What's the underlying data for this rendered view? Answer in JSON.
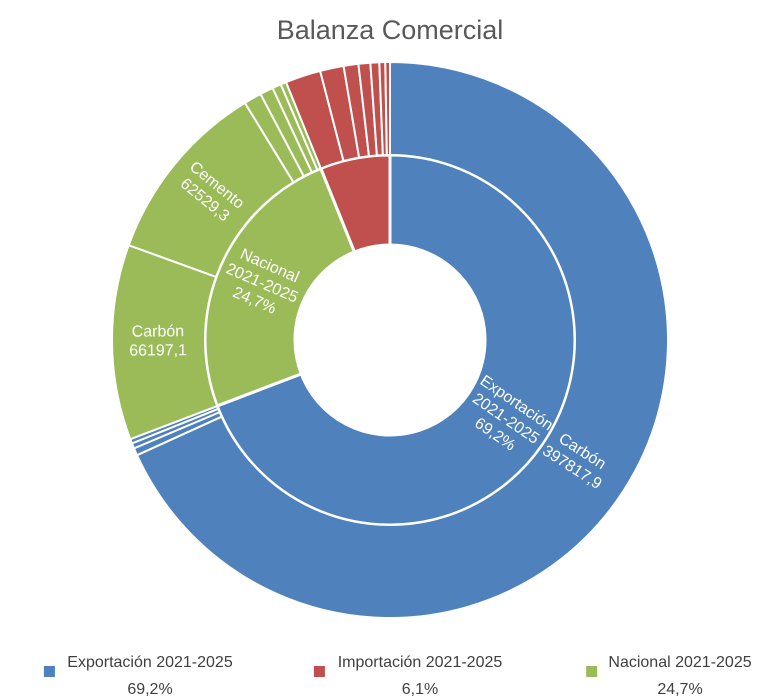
{
  "chart_data": {
    "type": "sunburst",
    "title": "Balanza Comercial",
    "groups": [
      {
        "name": "Exportación 2021-2025",
        "value": 69.2,
        "value_label": "69,2%",
        "color": "#4f81bd",
        "children": {
          "names": [
            "Carbón",
            null,
            null,
            null
          ],
          "values": [
            397817.9,
            2500,
            1800,
            1500
          ],
          "value_labels": [
            "397817,9",
            null,
            null,
            null
          ]
        }
      },
      {
        "name": "Nacional 2021-2025",
        "value": 24.7,
        "value_label": "24,7%",
        "color": "#9bbb59",
        "children": {
          "names": [
            "Carbón",
            "Cemento",
            null,
            null,
            null,
            null
          ],
          "values": [
            66197.1,
            62529.3,
            6000,
            4500,
            3000,
            1900
          ],
          "value_labels": [
            "66197,1",
            "62529,3",
            null,
            null,
            null,
            null
          ]
        }
      },
      {
        "name": "Importación 2021-2025",
        "value": 6.1,
        "value_label": "6,1%",
        "color": "#c0504d",
        "children": {
          "names": [
            null,
            null,
            null,
            null,
            null,
            null,
            null
          ],
          "values": [
            12000,
            8000,
            5000,
            4000,
            3000,
            2000,
            1580
          ],
          "value_labels": [
            null,
            null,
            null,
            null,
            null,
            null,
            null
          ]
        }
      }
    ]
  }
}
